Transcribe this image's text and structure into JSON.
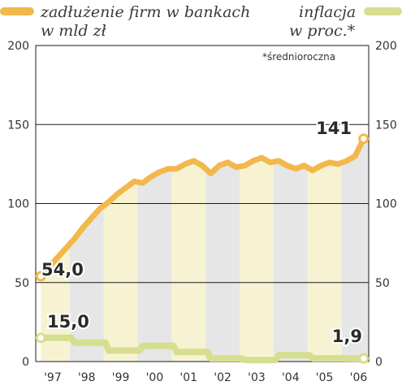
{
  "chart_data": {
    "type": "line",
    "legend": [
      {
        "label_lines": [
          "zadłużenie firm w bankach",
          "w mld zł"
        ],
        "color": "#f2b84b"
      },
      {
        "label_lines": [
          "inflacja",
          "w proc.*"
        ],
        "color": "#d6de8f"
      }
    ],
    "note": "*średnioroczna",
    "x_tick_labels": [
      "'97",
      "'98",
      "'99",
      "'00",
      "'01",
      "'02",
      "'03",
      "'04",
      "'05",
      "'06"
    ],
    "y_left": {
      "ticks": [
        0,
        50,
        100,
        150,
        200
      ],
      "range": [
        0,
        200
      ]
    },
    "y_right": {
      "ticks": [
        0,
        50,
        100,
        150,
        200
      ],
      "range": [
        0,
        200
      ]
    },
    "grid": true,
    "band_colors": [
      "#f7f3d2",
      "#e6e6e6"
    ],
    "series": [
      {
        "name": "zadłużenie firm w bankach w mld zł",
        "color": "#f2b84b",
        "x": [
          1997.0,
          1997.25,
          1997.5,
          1997.75,
          1998.0,
          1998.25,
          1998.5,
          1998.75,
          1999.0,
          1999.25,
          1999.5,
          1999.75,
          2000.0,
          2000.25,
          2000.5,
          2000.75,
          2001.0,
          2001.25,
          2001.5,
          2001.75,
          2002.0,
          2002.25,
          2002.5,
          2002.75,
          2003.0,
          2003.25,
          2003.5,
          2003.75,
          2004.0,
          2004.25,
          2004.5,
          2004.75,
          2005.0,
          2005.25,
          2005.5,
          2005.75,
          2006.0,
          2006.25,
          2006.5
        ],
        "values": [
          54,
          60,
          66,
          72,
          78,
          85,
          91,
          97,
          101,
          106,
          110,
          114,
          113,
          117,
          120,
          122,
          122,
          125,
          127,
          124,
          119,
          124,
          126,
          123,
          124,
          127,
          129,
          126,
          127,
          124,
          122,
          124,
          121,
          124,
          126,
          125,
          127,
          130,
          141
        ],
        "start_label": "54,0",
        "end_label": "141"
      },
      {
        "name": "inflacja w proc.*",
        "color": "#d6de8f",
        "x": [
          1997.0,
          1997.9,
          1998.0,
          1998.9,
          1999.0,
          1999.9,
          2000.0,
          2000.9,
          2001.0,
          2001.9,
          2002.0,
          2002.9,
          2003.0,
          2003.9,
          2004.0,
          2004.9,
          2005.0,
          2005.9,
          2006.0,
          2006.5
        ],
        "values": [
          15,
          15,
          12,
          12,
          7,
          7,
          10,
          10,
          6,
          6,
          2,
          2,
          1,
          1,
          4,
          4,
          2,
          2,
          1.9,
          1.9
        ],
        "start_label": "15,0",
        "end_label": "1,9"
      }
    ]
  }
}
